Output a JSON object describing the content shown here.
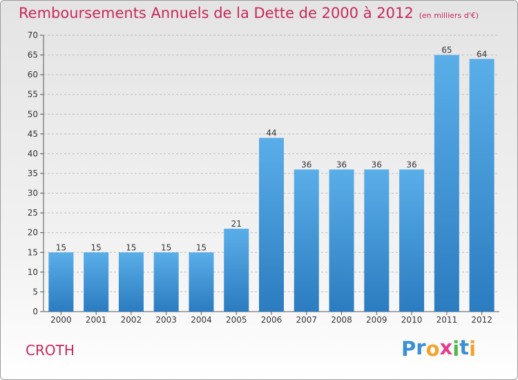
{
  "header": {
    "title": "Remboursements Annuels de la Dette de 2000 à 2012",
    "subtitle": "(en milliers d'€)"
  },
  "footer": {
    "commune": "CROTH",
    "brand": "Proxiti",
    "brand_letters": [
      {
        "char": "P",
        "color": "#3b8fd4"
      },
      {
        "char": "r",
        "color": "#3b8fd4"
      },
      {
        "char": "o",
        "color": "#f2a22e"
      },
      {
        "char": "x",
        "color": "#e63c8e"
      },
      {
        "char": "i",
        "color": "#52b848"
      },
      {
        "char": "t",
        "color": "#3b8fd4"
      },
      {
        "char": "i",
        "color": "#f2a22e"
      }
    ]
  },
  "colors": {
    "bar_light": "#5aaee8",
    "bar_dark": "#2b7cc0",
    "title": "#c8285a",
    "grid": "#bbbbbb"
  },
  "chart_data": {
    "type": "bar",
    "title": "Remboursements Annuels de la Dette de 2000 à 2012",
    "subtitle": "(en milliers d'€)",
    "categories": [
      "2000",
      "2001",
      "2002",
      "2003",
      "2004",
      "2005",
      "2006",
      "2007",
      "2008",
      "2009",
      "2010",
      "2011",
      "2012"
    ],
    "values": [
      15,
      15,
      15,
      15,
      15,
      21,
      44,
      36,
      36,
      36,
      36,
      65,
      64
    ],
    "data_labels": [
      "15",
      "15",
      "15",
      "15",
      "15",
      "21",
      "44",
      "36",
      "36",
      "36",
      "36",
      "65",
      "64"
    ],
    "ylim": [
      0,
      70
    ],
    "yticks": [
      0,
      5,
      10,
      15,
      20,
      25,
      30,
      35,
      40,
      45,
      50,
      55,
      60,
      65,
      70
    ],
    "grid": true,
    "xlabel": "",
    "ylabel": ""
  }
}
